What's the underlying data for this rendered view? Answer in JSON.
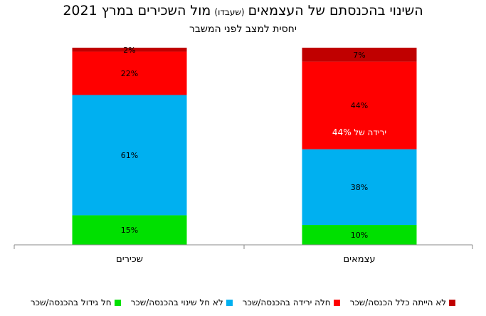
{
  "title": {
    "before": "השינוי בהכנסתם של העצמאים",
    "small": "(שעבדו)",
    "after": "מול השכירים במרץ 2021"
  },
  "subtitle": "יחסית למצב לפני המשבר",
  "colors": {
    "no_income": "#c00000",
    "decrease": "#ff0000",
    "no_change": "#00b0f0",
    "increase": "#00e000",
    "axis": "#888888"
  },
  "chart_data": {
    "type": "bar",
    "stacked": true,
    "categories": [
      "עצמאים",
      "שכירים"
    ],
    "series": [
      {
        "name": "חל גידול בהכנסה/שכר",
        "color": "#00e000",
        "values": [
          10,
          15
        ]
      },
      {
        "name": "לא חל שינוי בהכנסה/שכר",
        "color": "#00b0f0",
        "values": [
          38,
          61
        ]
      },
      {
        "name": "חלה ירידה בהכנסה/שכר",
        "color": "#ff0000",
        "values": [
          44,
          22
        ]
      },
      {
        "name": "לא הייתה כלל הכנסה/שכר",
        "color": "#c00000",
        "values": [
          7,
          2
        ]
      }
    ],
    "data_labels": [
      [
        "10%",
        "38%",
        "44%",
        "7%"
      ],
      [
        "15%",
        "61%",
        "22%",
        "2%"
      ]
    ],
    "annotation": {
      "category_index": 0,
      "text": "ירידה של 44%"
    },
    "ylim": [
      0,
      100
    ],
    "legend": "bottom"
  }
}
